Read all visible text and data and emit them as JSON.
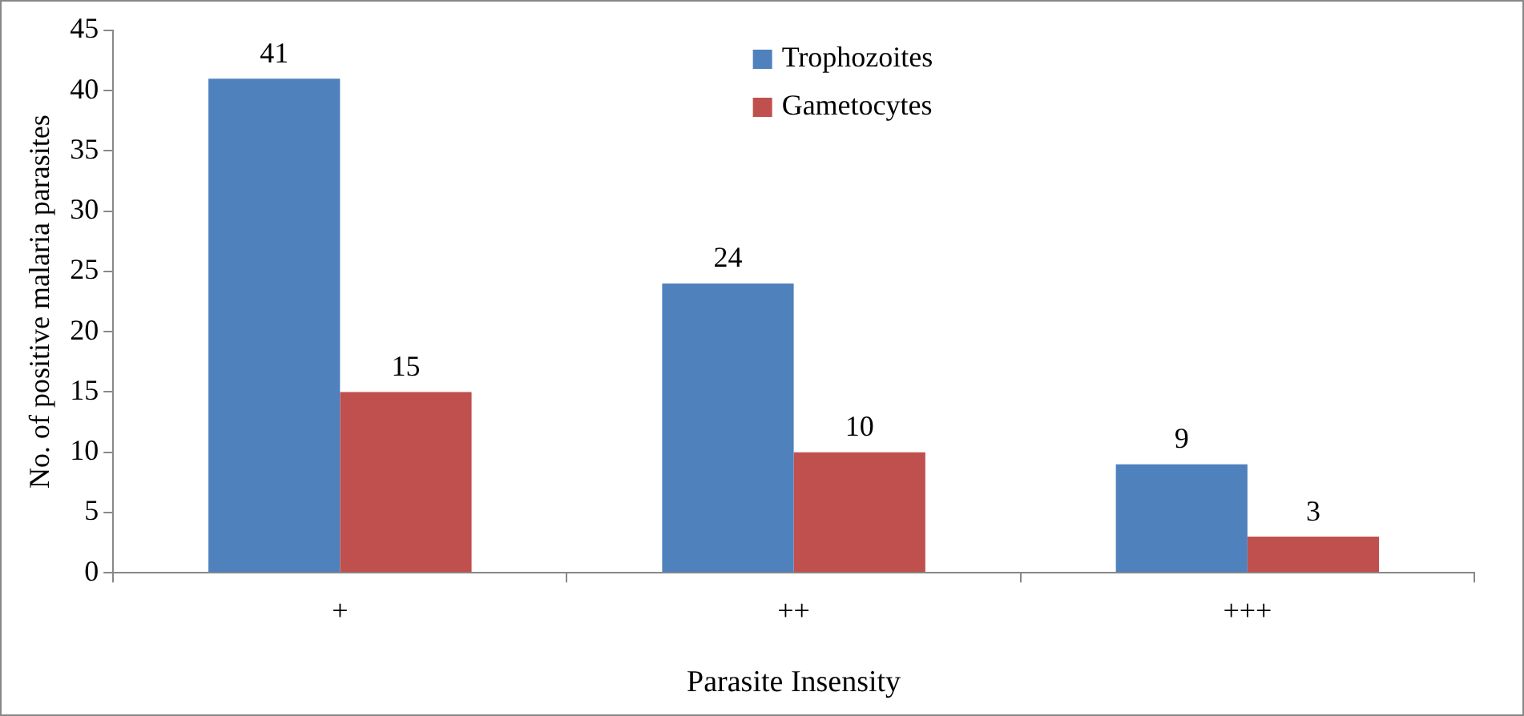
{
  "chart_data": {
    "type": "bar",
    "xlabel": "Parasite Insensity",
    "ylabel": "No. of positive malaria parasites",
    "categories": [
      "+",
      "++",
      "+++"
    ],
    "series": [
      {
        "name": "Trophozoites",
        "color": "#4f81bd",
        "values": [
          41,
          24,
          9
        ]
      },
      {
        "name": "Gametocytes",
        "color": "#c0504d",
        "values": [
          15,
          10,
          3
        ]
      }
    ],
    "ylim": [
      0,
      45
    ],
    "yticks": [
      0,
      5,
      10,
      15,
      20,
      25,
      30,
      35,
      40,
      45
    ],
    "data_labels": true,
    "legend": "top",
    "grid": false
  }
}
